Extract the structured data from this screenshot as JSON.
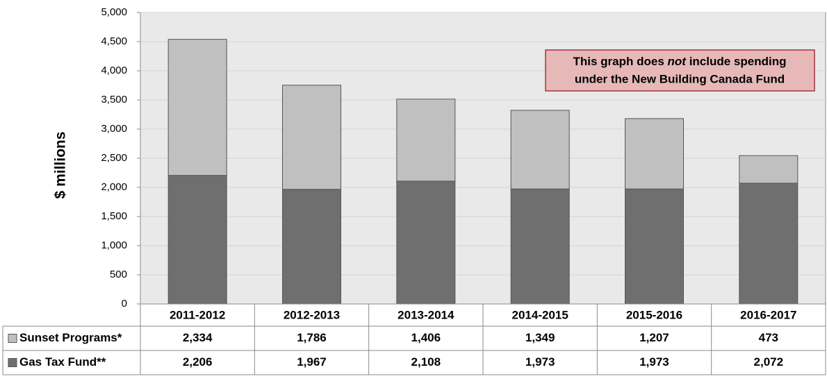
{
  "chart_data": {
    "type": "stacked-bar",
    "y_label": "$ millions",
    "annotation": {
      "line1": [
        "This graph does",
        "not",
        "include spending"
      ],
      "line2": "under the New Building Canada Fund"
    },
    "categories": [
      "2011-2012",
      "2012-2013",
      "2013-2014",
      "2014-2015",
      "2015-2016",
      "2016-2017"
    ],
    "series": [
      {
        "name": "Gas Tax Fund**",
        "color": "#6f6f6f",
        "values": [
          2206,
          1967,
          2108,
          1973,
          1973,
          2072
        ],
        "value_labels": [
          "2,206",
          "1,967",
          "2,108",
          "1,973",
          "1,973",
          "2,072"
        ]
      },
      {
        "name": "Sunset Programs*",
        "color": "#c0c0c0",
        "values": [
          2334,
          1786,
          1406,
          1349,
          1207,
          473
        ],
        "value_labels": [
          "2,334",
          "1,786",
          "1,406",
          "1,349",
          "1,207",
          "473"
        ]
      }
    ],
    "ylim": [
      0,
      5000
    ],
    "yticks": [
      0,
      500,
      {
        "value": 1000,
        "label": "1,000"
      },
      {
        "value": 1500,
        "label": "1,500"
      },
      {
        "value": 2000,
        "label": "2,000"
      },
      {
        "value": 2500,
        "label": "2,500"
      },
      {
        "value": 3000,
        "label": "3,000"
      },
      {
        "value": 3500,
        "label": "3,500"
      },
      {
        "value": 4000,
        "label": "4,000"
      },
      {
        "value": 4500,
        "label": "4,500"
      },
      {
        "value": 5000,
        "label": "5,000"
      }
    ],
    "grid": true
  }
}
